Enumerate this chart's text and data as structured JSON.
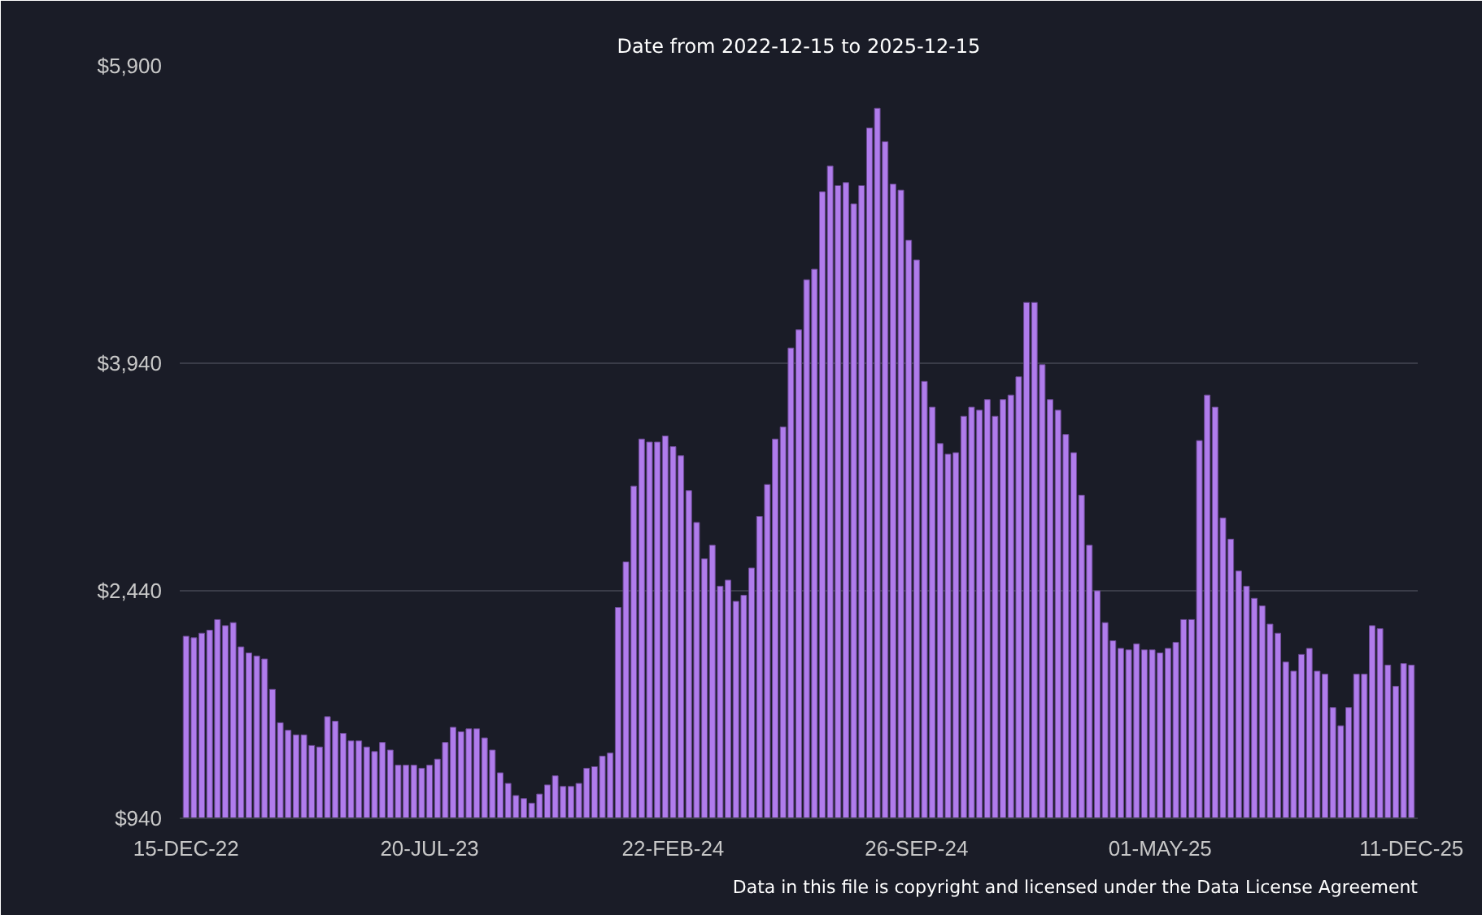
{
  "chart_data": {
    "type": "bar",
    "title": "Date from 2022-12-15 to 2025-12-15",
    "categories": [
      "15-DEC-22",
      null,
      null,
      null,
      null,
      null,
      null,
      null,
      null,
      null,
      null,
      null,
      null,
      null,
      null,
      null,
      null,
      null,
      null,
      null,
      null,
      null,
      null,
      null,
      null,
      null,
      null,
      null,
      null,
      null,
      null,
      "20-JUL-23",
      null,
      null,
      null,
      null,
      null,
      null,
      null,
      null,
      null,
      null,
      null,
      null,
      null,
      null,
      null,
      null,
      null,
      null,
      null,
      null,
      null,
      null,
      null,
      null,
      null,
      null,
      null,
      null,
      null,
      null,
      "22-FEB-24",
      null,
      null,
      null,
      null,
      null,
      null,
      null,
      null,
      null,
      null,
      null,
      null,
      null,
      null,
      null,
      null,
      null,
      null,
      null,
      null,
      null,
      null,
      null,
      null,
      null,
      null,
      null,
      null,
      null,
      null,
      "26-SEP-24",
      null,
      null,
      null,
      null,
      null,
      null,
      null,
      null,
      null,
      null,
      null,
      null,
      null,
      null,
      null,
      null,
      null,
      null,
      null,
      null,
      null,
      null,
      null,
      null,
      null,
      null,
      null,
      null,
      null,
      null,
      "01-MAY-25",
      null,
      null,
      null,
      null,
      null,
      null,
      null,
      null,
      null,
      null,
      null,
      null,
      null,
      null,
      null,
      null,
      null,
      null,
      null,
      null,
      null,
      null,
      null,
      null,
      null,
      null,
      null,
      null,
      null,
      null,
      null,
      "11-DEC-25"
    ],
    "values": [
      2140,
      2130,
      2160,
      2180,
      2250,
      2210,
      2230,
      2070,
      2030,
      2010,
      1990,
      1790,
      1570,
      1520,
      1490,
      1490,
      1420,
      1410,
      1610,
      1580,
      1500,
      1450,
      1450,
      1410,
      1380,
      1440,
      1390,
      1290,
      1290,
      1290,
      1270,
      1290,
      1330,
      1440,
      1540,
      1510,
      1530,
      1530,
      1470,
      1390,
      1240,
      1170,
      1090,
      1070,
      1040,
      1100,
      1160,
      1220,
      1150,
      1150,
      1170,
      1270,
      1280,
      1350,
      1370,
      2330,
      2630,
      3130,
      3440,
      3420,
      3420,
      3460,
      3390,
      3330,
      3100,
      2890,
      2650,
      2740,
      2470,
      2510,
      2370,
      2410,
      2590,
      2930,
      3140,
      3440,
      3520,
      4040,
      4160,
      4490,
      4560,
      5070,
      5240,
      5110,
      5130,
      4990,
      5110,
      5490,
      5620,
      5400,
      5120,
      5080,
      4750,
      4620,
      3820,
      3650,
      3410,
      3340,
      3350,
      3590,
      3650,
      3630,
      3700,
      3590,
      3700,
      3730,
      3850,
      4340,
      4340,
      3930,
      3700,
      3630,
      3470,
      3350,
      3070,
      2740,
      2440,
      2230,
      2110,
      2060,
      2050,
      2090,
      2050,
      2050,
      2030,
      2060,
      2100,
      2250,
      2250,
      3430,
      3730,
      3650,
      2920,
      2780,
      2570,
      2470,
      2390,
      2340,
      2220,
      2160,
      1970,
      1910,
      2020,
      2060,
      1910,
      1890,
      1670,
      1550,
      1670,
      1890,
      1890,
      2210,
      2190,
      1950,
      1810,
      1960,
      1950
    ],
    "color": "#b07cec",
    "ylim": [
      940,
      5900
    ],
    "yticks": [
      {
        "value": 940,
        "label": "$940"
      },
      {
        "value": 2440,
        "label": "$2,440"
      },
      {
        "value": 3940,
        "label": "$3,940"
      },
      {
        "value": 5900,
        "label": "$5,900"
      }
    ],
    "grid": "y",
    "annotations": [
      "Data in this file is copyright and licensed under the Data License Agreement"
    ]
  }
}
